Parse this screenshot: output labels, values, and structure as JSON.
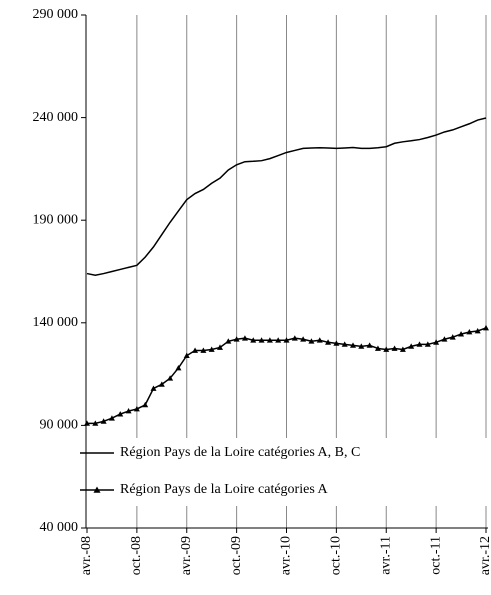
{
  "chart_data": {
    "type": "line",
    "categories": [
      "avr.-08",
      null,
      null,
      null,
      null,
      null,
      "oct.-08",
      null,
      null,
      null,
      null,
      null,
      "avr.-09",
      null,
      null,
      null,
      null,
      null,
      "oct.-09",
      null,
      null,
      null,
      null,
      null,
      "avr.-10",
      null,
      null,
      null,
      null,
      null,
      "oct.-10",
      null,
      null,
      null,
      null,
      null,
      "avr.-11",
      null,
      null,
      null,
      null,
      null,
      "oct.-11",
      null,
      null,
      null,
      null,
      null,
      "avr.-12"
    ],
    "series": [
      {
        "name": "Région Pays de la Loire catégories A, B, C",
        "color": "#000000",
        "marker": "none",
        "values": [
          164000,
          163200,
          164000,
          165000,
          166000,
          167000,
          168000,
          172000,
          177000,
          183000,
          189000,
          194500,
          200000,
          203000,
          205000,
          208000,
          210500,
          214500,
          217000,
          218500,
          218700,
          219000,
          220000,
          221500,
          223000,
          224000,
          225000,
          225200,
          225300,
          225200,
          225000,
          225200,
          225400,
          225000,
          225000,
          225300,
          225800,
          227500,
          228200,
          228700,
          229300,
          230300,
          231500,
          233000,
          234000,
          235500,
          237000,
          238800,
          239800
        ]
      },
      {
        "name": "Région Pays de la Loire catégories A",
        "color": "#000000",
        "marker": "triangle",
        "values": [
          91000,
          91000,
          92000,
          93500,
          95500,
          97000,
          98000,
          100000,
          108000,
          110000,
          113000,
          118000,
          124000,
          126500,
          126500,
          127000,
          128000,
          131000,
          132000,
          132500,
          131500,
          131500,
          131500,
          131500,
          131500,
          132500,
          132000,
          131000,
          131500,
          130500,
          130000,
          129500,
          129000,
          128500,
          129000,
          127500,
          127000,
          127500,
          127000,
          128500,
          129500,
          129500,
          130500,
          132000,
          133000,
          134500,
          135500,
          136000,
          137500
        ]
      }
    ],
    "ylim": [
      40000,
      290000
    ],
    "yticks": [
      {
        "value": 40000,
        "label": "40 000"
      },
      {
        "value": 90000,
        "label": "90 000"
      },
      {
        "value": 140000,
        "label": "140 000"
      },
      {
        "value": 190000,
        "label": "190 000"
      },
      {
        "value": 240000,
        "label": "240 000"
      },
      {
        "value": 290000,
        "label": "290 000"
      }
    ],
    "grid": "x",
    "legend": "lower left"
  }
}
